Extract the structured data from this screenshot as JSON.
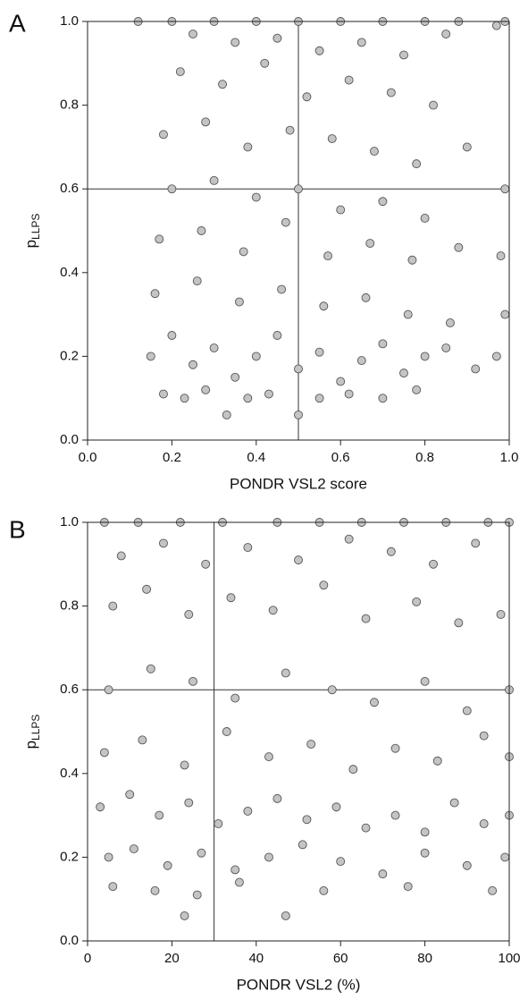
{
  "chart_data": [
    {
      "type": "scatter",
      "panel_label": "A",
      "x_label": "PONDR VSL2 score",
      "y_label": "p",
      "y_label_subscript": "LLPS",
      "xlim": [
        0,
        1
      ],
      "ylim": [
        0,
        1
      ],
      "xticks": [
        {
          "value": 0,
          "label": "0.0"
        },
        {
          "value": 0.2,
          "label": "0.2"
        },
        {
          "value": 0.4,
          "label": "0.4"
        },
        {
          "value": 0.6,
          "label": "0.6"
        },
        {
          "value": 0.8,
          "label": "0.8"
        },
        {
          "value": 1,
          "label": "1.0"
        }
      ],
      "yticks": [
        {
          "value": 0,
          "label": "0.0"
        },
        {
          "value": 0.2,
          "label": "0.2"
        },
        {
          "value": 0.4,
          "label": "0.4"
        },
        {
          "value": 0.6,
          "label": "0.6"
        },
        {
          "value": 0.8,
          "label": "0.8"
        },
        {
          "value": 1,
          "label": "1.0"
        }
      ],
      "hline": 0.6,
      "vline": 0.5,
      "color": "#c4c4c4",
      "x": [
        0.12,
        0.2,
        0.3,
        0.4,
        0.5,
        0.6,
        0.7,
        0.8,
        0.88,
        0.97,
        0.99,
        0.25,
        0.35,
        0.45,
        0.55,
        0.65,
        0.75,
        0.85,
        0.22,
        0.32,
        0.42,
        0.52,
        0.62,
        0.72,
        0.82,
        0.18,
        0.28,
        0.38,
        0.48,
        0.58,
        0.68,
        0.78,
        0.9,
        0.2,
        0.3,
        0.4,
        0.5,
        0.6,
        0.7,
        0.8,
        0.99,
        0.17,
        0.27,
        0.37,
        0.47,
        0.57,
        0.67,
        0.77,
        0.88,
        0.98,
        0.16,
        0.26,
        0.36,
        0.46,
        0.56,
        0.66,
        0.76,
        0.86,
        0.99,
        0.15,
        0.2,
        0.25,
        0.3,
        0.35,
        0.4,
        0.45,
        0.5,
        0.55,
        0.6,
        0.65,
        0.7,
        0.75,
        0.8,
        0.85,
        0.92,
        0.97,
        0.18,
        0.23,
        0.28,
        0.33,
        0.38,
        0.43,
        0.5,
        0.55,
        0.62,
        0.7,
        0.78
      ],
      "y": [
        1.0,
        1.0,
        1.0,
        1.0,
        1.0,
        1.0,
        1.0,
        1.0,
        1.0,
        0.99,
        1.0,
        0.97,
        0.95,
        0.96,
        0.93,
        0.95,
        0.92,
        0.97,
        0.88,
        0.85,
        0.9,
        0.82,
        0.86,
        0.83,
        0.8,
        0.73,
        0.76,
        0.7,
        0.74,
        0.72,
        0.69,
        0.66,
        0.7,
        0.6,
        0.62,
        0.58,
        0.6,
        0.55,
        0.57,
        0.53,
        0.6,
        0.48,
        0.5,
        0.45,
        0.52,
        0.44,
        0.47,
        0.43,
        0.46,
        0.44,
        0.35,
        0.38,
        0.33,
        0.36,
        0.32,
        0.34,
        0.3,
        0.28,
        0.3,
        0.2,
        0.25,
        0.18,
        0.22,
        0.15,
        0.2,
        0.25,
        0.17,
        0.21,
        0.14,
        0.19,
        0.23,
        0.16,
        0.2,
        0.22,
        0.17,
        0.2,
        0.11,
        0.1,
        0.12,
        0.06,
        0.1,
        0.11,
        0.06,
        0.1,
        0.11,
        0.1,
        0.12
      ]
    },
    {
      "type": "scatter",
      "panel_label": "B",
      "x_label": "PONDR VSL2 (%)",
      "y_label": "p",
      "y_label_subscript": "LLPS",
      "xlim": [
        0,
        100
      ],
      "ylim": [
        0,
        1
      ],
      "xticks": [
        0,
        20,
        40,
        60,
        80,
        100
      ],
      "yticks": [
        {
          "value": 0,
          "label": "0.0"
        },
        {
          "value": 0.2,
          "label": "0.2"
        },
        {
          "value": 0.4,
          "label": "0.4"
        },
        {
          "value": 0.6,
          "label": "0.6"
        },
        {
          "value": 0.8,
          "label": "0.8"
        },
        {
          "value": 1,
          "label": "1.0"
        }
      ],
      "hline": 0.6,
      "vline": 30,
      "color": "#c4c4c4",
      "x": [
        4,
        12,
        22,
        32,
        45,
        55,
        65,
        75,
        85,
        95,
        100,
        8,
        18,
        28,
        38,
        50,
        62,
        72,
        82,
        92,
        6,
        14,
        24,
        34,
        44,
        56,
        66,
        78,
        88,
        98,
        5,
        15,
        25,
        35,
        47,
        58,
        68,
        80,
        90,
        100,
        4,
        13,
        23,
        33,
        43,
        53,
        63,
        73,
        83,
        94,
        100,
        3,
        10,
        17,
        24,
        31,
        38,
        45,
        52,
        59,
        66,
        73,
        80,
        87,
        94,
        100,
        5,
        11,
        19,
        27,
        35,
        43,
        51,
        60,
        70,
        80,
        90,
        99,
        23,
        47,
        6,
        16,
        26,
        36,
        56,
        76,
        96
      ],
      "y": [
        1.0,
        1.0,
        1.0,
        1.0,
        1.0,
        1.0,
        1.0,
        1.0,
        1.0,
        1.0,
        1.0,
        0.92,
        0.95,
        0.9,
        0.94,
        0.91,
        0.96,
        0.93,
        0.9,
        0.95,
        0.8,
        0.84,
        0.78,
        0.82,
        0.79,
        0.85,
        0.77,
        0.81,
        0.76,
        0.78,
        0.6,
        0.65,
        0.62,
        0.58,
        0.64,
        0.6,
        0.57,
        0.62,
        0.55,
        0.6,
        0.45,
        0.48,
        0.42,
        0.5,
        0.44,
        0.47,
        0.41,
        0.46,
        0.43,
        0.49,
        0.44,
        0.32,
        0.35,
        0.3,
        0.33,
        0.28,
        0.31,
        0.34,
        0.29,
        0.32,
        0.27,
        0.3,
        0.26,
        0.33,
        0.28,
        0.3,
        0.2,
        0.22,
        0.18,
        0.21,
        0.17,
        0.2,
        0.23,
        0.19,
        0.16,
        0.21,
        0.18,
        0.2,
        0.06,
        0.06,
        0.13,
        0.12,
        0.11,
        0.14,
        0.12,
        0.13,
        0.12
      ]
    }
  ]
}
